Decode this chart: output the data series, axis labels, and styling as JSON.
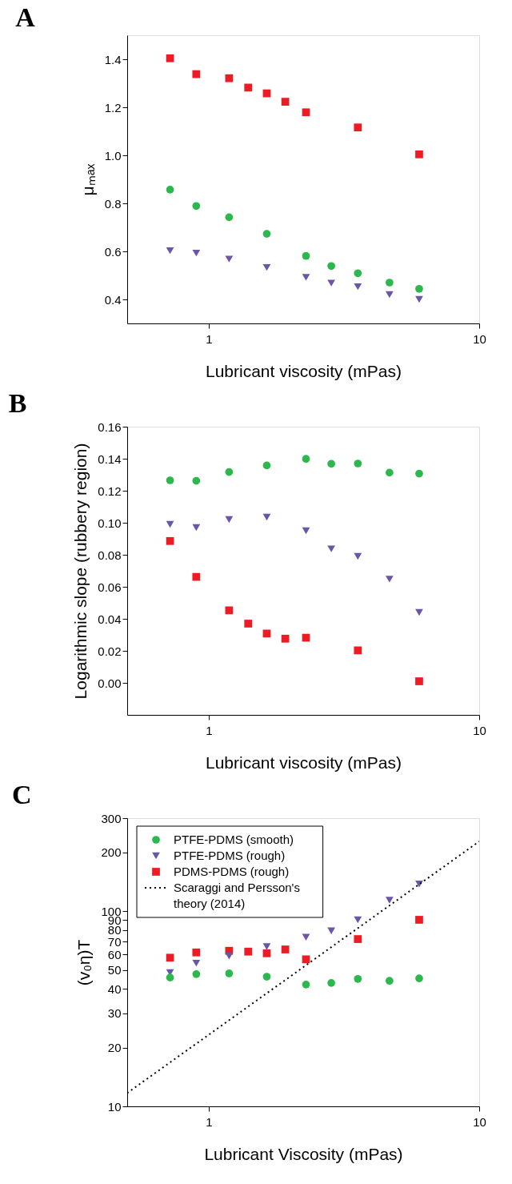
{
  "chart_data": [
    {
      "type": "scatter",
      "title": "A",
      "xlabel": "Lubricant viscosity (mPas)",
      "ylabel": "μₘₐₓ",
      "log": "x",
      "grid": false,
      "legend": false,
      "xlim": [
        0.5,
        10
      ],
      "xticks": [
        1,
        10
      ],
      "ylim": [
        0.3,
        1.5
      ],
      "yticks": [
        0.4,
        0.6,
        0.8,
        {
          "value": 1.0,
          "label": "1.0"
        },
        1.2,
        1.4
      ],
      "series": [
        {
          "color": "#2db84d",
          "marker": "circle",
          "x": [
            0.72,
            0.9,
            1.19,
            1.64,
            2.29,
            2.84,
            3.56,
            4.66,
            6.0
          ],
          "values": [
            0.857,
            0.789,
            0.742,
            0.673,
            0.581,
            0.539,
            0.509,
            0.47,
            0.444
          ]
        },
        {
          "color": "#6a55a8",
          "marker": "triangle",
          "x": [
            0.72,
            0.9,
            1.19,
            1.64,
            2.29,
            2.84,
            3.56,
            4.66,
            6.0
          ],
          "values": [
            0.603,
            0.593,
            0.568,
            0.533,
            0.492,
            0.468,
            0.453,
            0.42,
            0.4
          ]
        },
        {
          "color": "#ed1c24",
          "marker": "square",
          "x": [
            0.72,
            0.9,
            1.19,
            1.4,
            1.64,
            1.92,
            2.29,
            3.56,
            6.0
          ],
          "values": [
            1.404,
            1.338,
            1.321,
            1.282,
            1.258,
            1.223,
            1.179,
            1.116,
            1.004
          ]
        }
      ]
    },
    {
      "type": "scatter",
      "title": "B",
      "xlabel": "Lubricant viscosity (mPas)",
      "ylabel": "Logarithmic slope (rubbery region)",
      "log": "x",
      "grid": false,
      "legend": false,
      "xlim": [
        0.5,
        10
      ],
      "xticks": [
        1,
        10
      ],
      "ylim": [
        -0.02,
        0.16
      ],
      "yticks": [
        {
          "value": 0,
          "label": "0.00"
        },
        0.02,
        0.04,
        0.06,
        0.08,
        {
          "value": 0.1,
          "label": "0.10"
        },
        0.12,
        0.14,
        0.16
      ],
      "series": [
        {
          "color": "#2db84d",
          "marker": "circle",
          "x": [
            0.72,
            0.9,
            1.19,
            1.64,
            2.29,
            2.84,
            3.56,
            4.66,
            6.0
          ],
          "values": [
            0.1265,
            0.1262,
            0.1317,
            0.1358,
            0.1399,
            0.1368,
            0.137,
            0.1313,
            0.1307
          ]
        },
        {
          "color": "#6a55a8",
          "marker": "triangle",
          "x": [
            0.72,
            0.9,
            1.19,
            1.64,
            2.29,
            2.84,
            3.56,
            4.66,
            6.0
          ],
          "values": [
            0.099,
            0.097,
            0.102,
            0.1035,
            0.095,
            0.0837,
            0.079,
            0.0648,
            0.044
          ]
        },
        {
          "color": "#ed1c24",
          "marker": "square",
          "x": [
            0.72,
            0.9,
            1.19,
            1.4,
            1.64,
            1.92,
            2.29,
            3.56,
            6.0
          ],
          "values": [
            0.0886,
            0.0662,
            0.0453,
            0.037,
            0.0308,
            0.0276,
            0.0282,
            0.0203,
            0.001
          ]
        }
      ]
    },
    {
      "type": "scatter",
      "title": "C",
      "xlabel": "Lubricant Viscosity (mPas)",
      "ylabel": "(v₀η)T",
      "log": "xy",
      "grid": false,
      "legend": "top left",
      "xlim": [
        0.5,
        10
      ],
      "xticks": [
        1,
        10
      ],
      "ylim": [
        10,
        300
      ],
      "yticks": [
        10,
        20,
        30,
        40,
        50,
        60,
        70,
        80,
        90,
        100,
        200,
        300
      ],
      "series": [
        {
          "name": "PTFE-PDMS (smooth)",
          "color": "#2db84d",
          "marker": "circle",
          "x": [
            0.72,
            0.9,
            1.19,
            1.64,
            2.29,
            2.84,
            3.56,
            4.66,
            6.0
          ],
          "values": [
            45.7,
            47.6,
            48.0,
            46.2,
            42.1,
            42.9,
            45.0,
            44.0,
            45.3
          ]
        },
        {
          "name": "PTFE-PDMS (rough)",
          "color": "#6a55a8",
          "marker": "triangle",
          "x": [
            0.72,
            0.9,
            1.19,
            1.64,
            2.29,
            2.84,
            3.56,
            4.66,
            6.0
          ],
          "values": [
            48.5,
            54.2,
            58.9,
            65.8,
            73.6,
            79.4,
            90.4,
            114,
            138
          ]
        },
        {
          "name": "PDMS-PDMS (rough)",
          "color": "#ed1c24",
          "marker": "square",
          "x": [
            0.72,
            0.9,
            1.19,
            1.4,
            1.64,
            1.92,
            2.29,
            3.56,
            6.0
          ],
          "values": [
            57.8,
            61.5,
            62.7,
            62.1,
            60.9,
            63.7,
            56.7,
            72.0,
            90.4
          ]
        },
        {
          "name": "Scaraggi and Persson's theory (2014)",
          "type": "line",
          "line_style": "dotted",
          "color": "#000000",
          "x": [
            0.5,
            10
          ],
          "values": [
            11.7,
            228
          ]
        }
      ]
    }
  ]
}
